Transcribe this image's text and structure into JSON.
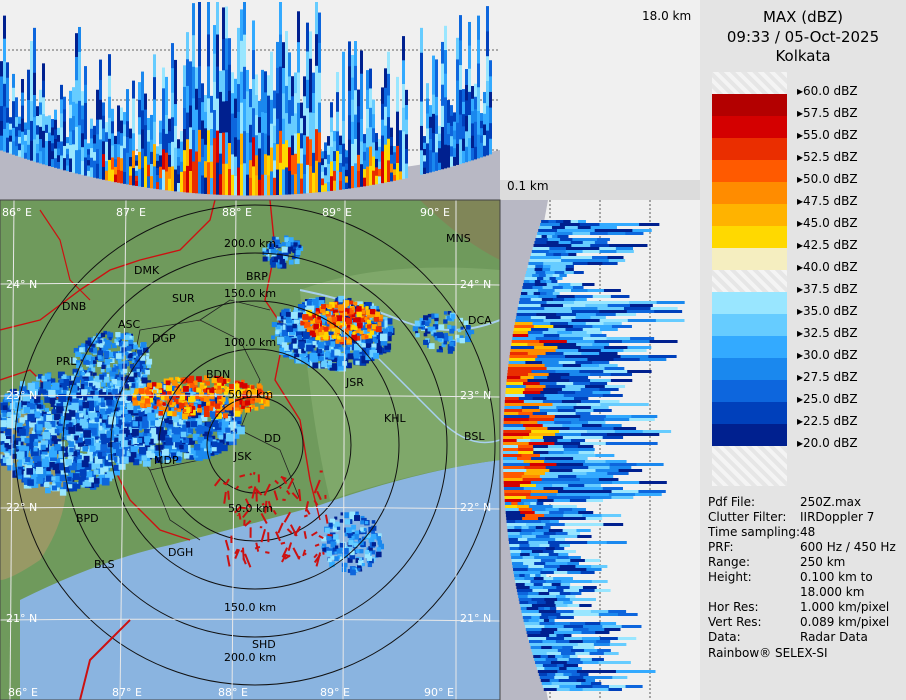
{
  "header": {
    "product": "MAX (dBZ)",
    "datetime": "09:33 / 05-Oct-2025",
    "station": "Kolkata"
  },
  "height_top_label": "18.0 km",
  "height_bottom_label": "0.1 km",
  "legend": {
    "levels": [
      "60.0 dBZ",
      "57.5 dBZ",
      "55.0 dBZ",
      "52.5 dBZ",
      "50.0 dBZ",
      "47.5 dBZ",
      "45.0 dBZ",
      "42.5 dBZ",
      "40.0 dBZ",
      "37.5 dBZ",
      "35.0 dBZ",
      "32.5 dBZ",
      "30.0 dBZ",
      "27.5 dBZ",
      "25.0 dBZ",
      "22.5 dBZ",
      "20.0 dBZ"
    ],
    "colors": [
      "#eeeeee",
      "#b30000",
      "#d40000",
      "#ea2e00",
      "#ff5a00",
      "#ff8c00",
      "#ffb300",
      "#ffd900",
      "#f5eec0",
      "#ffffff",
      "#99e6ff",
      "#66ccff",
      "#33aaff",
      "#1a88ee",
      "#0d66dd",
      "#0040bb",
      "#00208f"
    ]
  },
  "info": [
    {
      "key": "Pdf File:",
      "value": "250Z.max"
    },
    {
      "key": "Clutter Filter:",
      "value": "IIRDoppler 7"
    },
    {
      "key": "Time sampling:",
      "value": "48"
    },
    {
      "key": "PRF:",
      "value": "600 Hz / 450 Hz"
    },
    {
      "key": "Range:",
      "value": "250 km"
    },
    {
      "key": "Height:",
      "value": "0.100 km to"
    },
    {
      "key": "",
      "value": "18.000 km"
    },
    {
      "key": "Hor Res:",
      "value": "1.000 km/pixel"
    },
    {
      "key": "Vert Res:",
      "value": "0.089 km/pixel"
    },
    {
      "key": "Data:",
      "value": "Radar Data"
    }
  ],
  "footer": "Rainbow® SELEX-SI",
  "map": {
    "lon_top": [
      "86° E",
      "87° E",
      "88° E",
      "89° E",
      "90° E"
    ],
    "lon_bottom": [
      "86° E",
      "87° E",
      "88° E",
      "89° E",
      "90° E"
    ],
    "lat_left": [
      "24° N",
      "23° N",
      "22° N",
      "21° N"
    ],
    "lat_right": [
      "24° N",
      "23° N",
      "22° N",
      "21° N"
    ],
    "ranges": [
      "50.0 km",
      "100.0 km",
      "150.0 km",
      "200.0 km"
    ],
    "cities": [
      "DMK",
      "BRP",
      "MNS",
      "DNB",
      "SUR",
      "ASC",
      "DGP",
      "DCA",
      "PRL",
      "BDN",
      "JSR",
      "KHL",
      "BSL",
      "JSK",
      "DD",
      "MDP",
      "BPD",
      "DGH",
      "BLS",
      "SHD"
    ]
  },
  "colors": {
    "land": "#6f9a5c",
    "sea": "#8ab4e0",
    "panel": "#e4e4e4",
    "boundary": "#cc1111"
  }
}
